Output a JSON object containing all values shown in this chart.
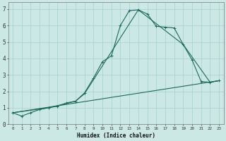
{
  "xlabel": "Humidex (Indice chaleur)",
  "bg_color": "#cce8e4",
  "grid_color": "#aad4d0",
  "line_color": "#1a6b5a",
  "xlim": [
    -0.5,
    23.5
  ],
  "ylim": [
    0,
    7.4
  ],
  "yticks": [
    0,
    1,
    2,
    3,
    4,
    5,
    6,
    7
  ],
  "xtick_labels": [
    "0",
    "1",
    "2",
    "3",
    "4",
    "5",
    "6",
    "7",
    "8",
    "9",
    "10",
    "11",
    "12",
    "13",
    "14",
    "15",
    "16",
    "17",
    "18",
    "19",
    "20",
    "21",
    "22",
    "23"
  ],
  "ytick_labels": [
    "0",
    "1",
    "2",
    "3",
    "4",
    "5",
    "6",
    "7"
  ],
  "line1_x": [
    0,
    1,
    2,
    3,
    4,
    5,
    6,
    7,
    8,
    9,
    10,
    11,
    12,
    13,
    14,
    15,
    16,
    17,
    18,
    19,
    20,
    21,
    22,
    23
  ],
  "line1_y": [
    0.7,
    0.5,
    0.7,
    0.9,
    1.0,
    1.1,
    1.3,
    1.4,
    1.9,
    2.8,
    3.8,
    4.15,
    6.0,
    6.9,
    6.95,
    6.7,
    5.95,
    5.9,
    5.85,
    4.85,
    3.9,
    2.6,
    2.55,
    2.65
  ],
  "line2_x": [
    0,
    4,
    7,
    8,
    14,
    19,
    22,
    23
  ],
  "line2_y": [
    0.7,
    1.0,
    1.4,
    1.85,
    6.95,
    4.85,
    2.55,
    2.65
  ],
  "line3_x": [
    0,
    23
  ],
  "line3_y": [
    0.7,
    2.65
  ]
}
